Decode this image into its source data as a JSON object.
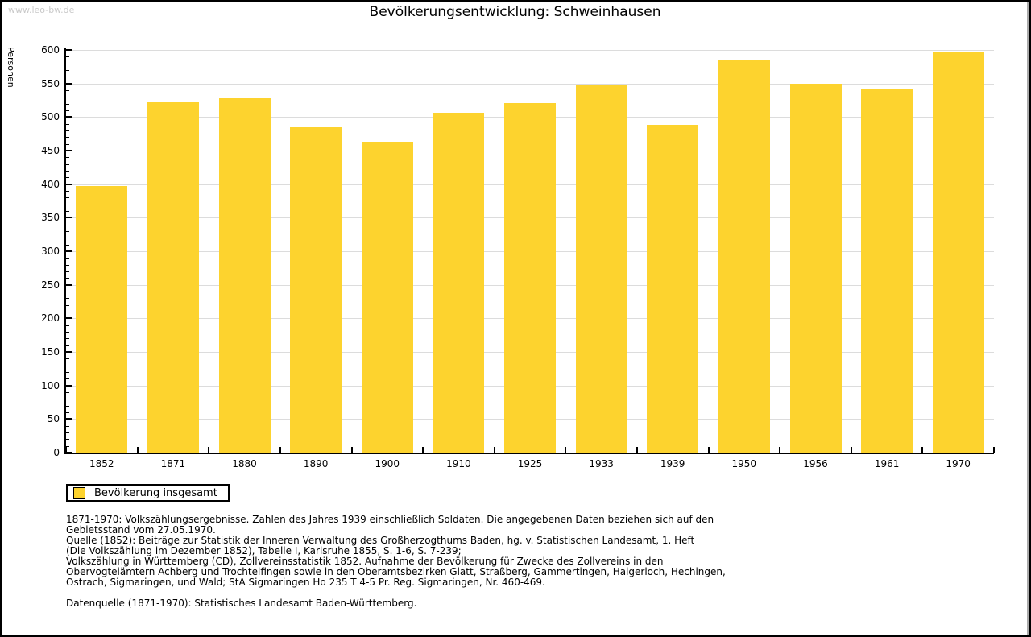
{
  "watermark": "www.leo-bw.de",
  "title": "Bevölkerungsentwicklung: Schweinhausen",
  "chart_data": {
    "type": "bar",
    "title": "Bevölkerungsentwicklung: Schweinhausen",
    "ylabel": "Personen",
    "xlabel": "",
    "categories": [
      "1852",
      "1871",
      "1880",
      "1890",
      "1900",
      "1910",
      "1925",
      "1933",
      "1939",
      "1950",
      "1956",
      "1961",
      "1970"
    ],
    "values": [
      397,
      522,
      528,
      485,
      463,
      507,
      521,
      547,
      488,
      585,
      550,
      541,
      597
    ],
    "series": [
      {
        "name": "Bevölkerung insgesamt",
        "values": [
          397,
          522,
          528,
          485,
          463,
          507,
          521,
          547,
          488,
          585,
          550,
          541,
          597
        ]
      }
    ],
    "ylim": [
      0,
      600
    ],
    "ytick_step": 50,
    "ytick_minor_step": 10,
    "grid": true,
    "legend_position": "bottom-left",
    "bar_color": "#FDD32E",
    "grid_color": "#DCDCDC",
    "axis_color": "#000000",
    "watermark_color": "#C9C9C9"
  },
  "legend": {
    "label": "Bevölkerung insgesamt"
  },
  "footnotes": [
    "1871-1970: Volkszählungsergebnisse. Zahlen des Jahres 1939 einschließlich Soldaten. Die angegebenen Daten beziehen sich auf den",
    "Gebietsstand vom 27.05.1970.",
    "Quelle (1852): Beiträge zur Statistik der Inneren Verwaltung des Großherzogthums Baden, hg. v. Statistischen Landesamt, 1. Heft",
    "(Die Volkszählung im Dezember 1852), Tabelle I, Karlsruhe 1855, S. 1-6, S. 7-239;",
    "Volkszählung in Württemberg (CD), Zollvereinsstatistik 1852. Aufnahme der Bevölkerung für Zwecke des Zollvereins in den",
    "Obervogteiämtern Achberg und Trochtelfingen sowie in den Oberamtsbezirken Glatt, Straßberg, Gammertingen, Haigerloch, Hechingen,",
    "Ostrach, Sigmaringen, und Wald; StA Sigmaringen Ho 235 T 4-5 Pr. Reg. Sigmaringen, Nr. 460-469."
  ],
  "datasource": "Datenquelle (1871-1970): Statistisches Landesamt Baden-Württemberg."
}
